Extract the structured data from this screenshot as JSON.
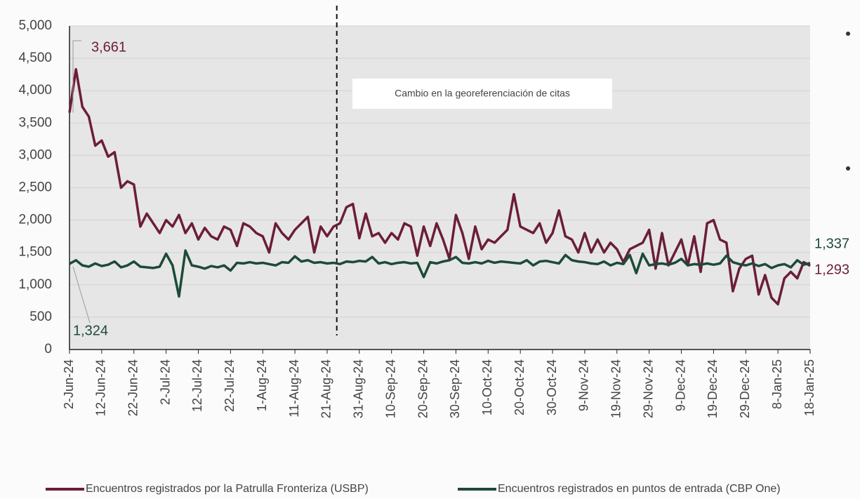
{
  "chart_data": {
    "type": "line",
    "categories": [
      "2-Jun-24",
      null,
      null,
      null,
      null,
      "12-Jun-24",
      null,
      null,
      null,
      null,
      "22-Jun-24",
      null,
      null,
      null,
      null,
      "2-Jul-24",
      null,
      null,
      null,
      null,
      "12-Jul-24",
      null,
      null,
      null,
      null,
      "22-Jul-24",
      null,
      null,
      null,
      null,
      "1-Aug-24",
      null,
      null,
      null,
      null,
      "11-Aug-24",
      null,
      null,
      null,
      null,
      "21-Aug-24",
      null,
      null,
      null,
      null,
      "31-Aug-24",
      null,
      null,
      null,
      null,
      "10-Sep-24",
      null,
      null,
      null,
      null,
      "20-Sep-24",
      null,
      null,
      null,
      null,
      "30-Sep-24",
      null,
      null,
      null,
      null,
      "10-Oct-24",
      null,
      null,
      null,
      null,
      "20-Oct-24",
      null,
      null,
      null,
      null,
      "30-Oct-24",
      null,
      null,
      null,
      null,
      "9-Nov-24",
      null,
      null,
      null,
      null,
      "19-Nov-24",
      null,
      null,
      null,
      null,
      "29-Nov-24",
      null,
      null,
      null,
      null,
      "9-Dec-24",
      null,
      null,
      null,
      null,
      "19-Dec-24",
      null,
      null,
      null,
      null,
      "29-Dec-24",
      null,
      null,
      null,
      null,
      "8-Jan-25",
      null,
      null,
      null,
      null,
      "18-Jan-25"
    ],
    "series": [
      {
        "name": "Encuentros registrados por la Patrulla Fronteriza (USBP)",
        "color": "#6b1d3a",
        "first_label": "3,661",
        "last_label": "1,293",
        "values": [
          3661,
          4330,
          3750,
          3600,
          3150,
          3230,
          2980,
          3050,
          2500,
          2600,
          2550,
          1900,
          2100,
          1950,
          1800,
          2000,
          1900,
          2080,
          1800,
          1950,
          1700,
          1880,
          1750,
          1700,
          1900,
          1850,
          1600,
          1950,
          1900,
          1800,
          1750,
          1500,
          1950,
          1800,
          1700,
          1850,
          1950,
          2050,
          1500,
          1900,
          1750,
          1900,
          1950,
          2200,
          2250,
          1720,
          2100,
          1750,
          1800,
          1650,
          1800,
          1700,
          1950,
          1900,
          1450,
          1900,
          1600,
          1950,
          1700,
          1400,
          2080,
          1800,
          1400,
          1900,
          1550,
          1700,
          1650,
          1750,
          1850,
          2400,
          1900,
          1850,
          1800,
          1950,
          1650,
          1800,
          2150,
          1750,
          1700,
          1500,
          1800,
          1500,
          1700,
          1500,
          1650,
          1550,
          1350,
          1550,
          1600,
          1650,
          1850,
          1250,
          1800,
          1300,
          1500,
          1700,
          1300,
          1750,
          1200,
          1950,
          2000,
          1700,
          1650,
          900,
          1250,
          1400,
          1450,
          850,
          1150,
          800,
          700,
          1100,
          1200,
          1100,
          1350,
          1293
        ]
      },
      {
        "name": "Encuentros registrados en puntos de entrada (CBP One)",
        "color": "#1d4a36",
        "first_label": "1,324",
        "last_label": "1,337",
        "values": [
          1324,
          1380,
          1300,
          1280,
          1330,
          1290,
          1310,
          1360,
          1270,
          1300,
          1360,
          1280,
          1270,
          1260,
          1280,
          1480,
          1300,
          820,
          1530,
          1300,
          1280,
          1250,
          1290,
          1270,
          1300,
          1220,
          1340,
          1330,
          1350,
          1330,
          1340,
          1320,
          1300,
          1350,
          1340,
          1440,
          1360,
          1380,
          1340,
          1350,
          1330,
          1340,
          1320,
          1360,
          1350,
          1370,
          1360,
          1430,
          1330,
          1350,
          1320,
          1340,
          1350,
          1330,
          1340,
          1120,
          1350,
          1330,
          1360,
          1380,
          1430,
          1340,
          1330,
          1350,
          1330,
          1370,
          1340,
          1360,
          1350,
          1340,
          1330,
          1380,
          1300,
          1360,
          1370,
          1350,
          1330,
          1460,
          1380,
          1360,
          1350,
          1330,
          1320,
          1360,
          1300,
          1340,
          1320,
          1460,
          1180,
          1480,
          1300,
          1320,
          1330,
          1310,
          1340,
          1400,
          1300,
          1320,
          1310,
          1330,
          1310,
          1330,
          1450,
          1350,
          1320,
          1300,
          1330,
          1290,
          1320,
          1260,
          1300,
          1320,
          1270,
          1380,
          1310,
          1337
        ]
      }
    ],
    "annotation": "Cambio en la georeferenciación de citas",
    "ylim": [
      0,
      5000
    ],
    "yticks": [
      0,
      500,
      {
        "value": 1000,
        "label": "1,000"
      },
      {
        "value": 1500,
        "label": "1,500"
      },
      {
        "value": 2000,
        "label": "2,000"
      },
      {
        "value": 2500,
        "label": "2,500"
      },
      {
        "value": 3000,
        "label": "3,000"
      },
      {
        "value": 3500,
        "label": "3,500"
      },
      {
        "value": 4000,
        "label": "4,000"
      },
      {
        "value": 4500,
        "label": "4,500"
      },
      {
        "value": 5000,
        "label": "5,000"
      }
    ],
    "grid": true
  }
}
